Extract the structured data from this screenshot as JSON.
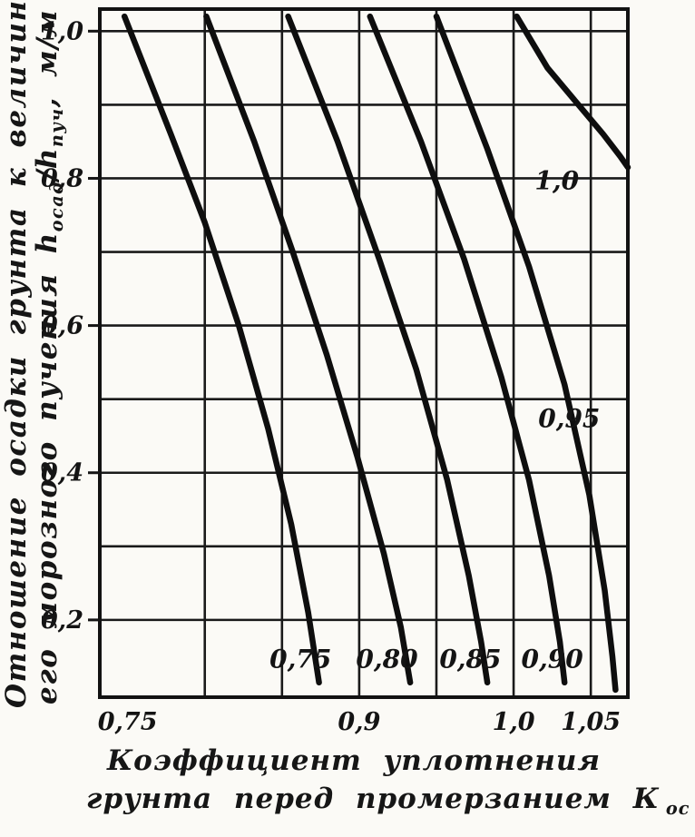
{
  "page": {
    "background": "#fbfaf6",
    "ink": "#161616"
  },
  "ylabel": {
    "line1": "Отношение осадки грунта к величине",
    "line2_pre": "его морозного пучения h",
    "line2_sub1": "осад",
    "line2_mid": "/h",
    "line2_sub2": "пуч",
    "line2_post": ", м/м"
  },
  "xlabel": {
    "line1": "Коэффициент уплотнения",
    "line2_main": "грунта перед промерзанием К",
    "line2_sub": "ос"
  },
  "chart_data": {
    "type": "line",
    "title": "",
    "xlabel": "Коэффициент уплотнения грунта перед промерзанием Кос",
    "ylabel": "Отношение осадки грунта к величине его морозного пучения hосад/hпуч, м/м",
    "x_range": [
      0.732,
      1.074
    ],
    "y_range": [
      0.095,
      1.03
    ],
    "grid": true,
    "x_ticks": [
      {
        "value": 0.75,
        "label": "0,75"
      },
      {
        "value": 0.9,
        "label": "0,9"
      },
      {
        "value": 1.0,
        "label": "1,0"
      },
      {
        "value": 1.05,
        "label": "1,05"
      }
    ],
    "y_ticks": [
      {
        "value": 0.2,
        "label": "0,2"
      },
      {
        "value": 0.4,
        "label": "0,4"
      },
      {
        "value": 0.6,
        "label": "0,6"
      },
      {
        "value": 0.8,
        "label": "0,8"
      },
      {
        "value": 1.0,
        "label": "1,0"
      }
    ],
    "x_gridlines": [
      0.8,
      0.85,
      0.9,
      0.95,
      1.0,
      1.05
    ],
    "y_gridlines": [
      0.2,
      0.3,
      0.4,
      0.5,
      0.6,
      0.7,
      0.8,
      0.9,
      1.0
    ],
    "series": [
      {
        "name": "0,75",
        "points": [
          [
            0.748,
            1.02
          ],
          [
            0.778,
            0.86
          ],
          [
            0.8,
            0.74
          ],
          [
            0.822,
            0.6
          ],
          [
            0.841,
            0.46
          ],
          [
            0.856,
            0.33
          ],
          [
            0.867,
            0.21
          ],
          [
            0.874,
            0.115
          ]
        ]
      },
      {
        "name": "0,80",
        "points": [
          [
            0.801,
            1.02
          ],
          [
            0.832,
            0.85
          ],
          [
            0.857,
            0.7
          ],
          [
            0.879,
            0.56
          ],
          [
            0.899,
            0.42
          ],
          [
            0.916,
            0.29
          ],
          [
            0.927,
            0.19
          ],
          [
            0.933,
            0.115
          ]
        ]
      },
      {
        "name": "0,85",
        "points": [
          [
            0.854,
            1.02
          ],
          [
            0.886,
            0.85
          ],
          [
            0.913,
            0.69
          ],
          [
            0.937,
            0.54
          ],
          [
            0.957,
            0.39
          ],
          [
            0.971,
            0.26
          ],
          [
            0.979,
            0.17
          ],
          [
            0.983,
            0.115
          ]
        ]
      },
      {
        "name": "0,90",
        "points": [
          [
            0.907,
            1.02
          ],
          [
            0.94,
            0.85
          ],
          [
            0.968,
            0.69
          ],
          [
            0.992,
            0.53
          ],
          [
            1.01,
            0.39
          ],
          [
            1.023,
            0.26
          ],
          [
            1.03,
            0.17
          ],
          [
            1.033,
            0.115
          ]
        ]
      },
      {
        "name": "0,95",
        "points": [
          [
            0.95,
            1.02
          ],
          [
            0.983,
            0.84
          ],
          [
            1.01,
            0.68
          ],
          [
            1.033,
            0.52
          ],
          [
            1.049,
            0.37
          ],
          [
            1.059,
            0.24
          ],
          [
            1.064,
            0.15
          ],
          [
            1.066,
            0.105
          ]
        ]
      },
      {
        "name": "1,0",
        "points": [
          [
            1.002,
            1.02
          ],
          [
            1.022,
            0.95
          ],
          [
            1.042,
            0.9
          ],
          [
            1.058,
            0.86
          ],
          [
            1.069,
            0.83
          ],
          [
            1.074,
            0.815
          ]
        ]
      }
    ],
    "curve_labels": [
      {
        "text": "1,0",
        "x": 1.028,
        "y": 0.785
      },
      {
        "text": "0,95",
        "x": 1.036,
        "y": 0.462
      },
      {
        "text": "0,75",
        "x": 0.862,
        "y": 0.135
      },
      {
        "text": "0,80",
        "x": 0.918,
        "y": 0.135
      },
      {
        "text": "0,85",
        "x": 0.972,
        "y": 0.135
      },
      {
        "text": "0,90",
        "x": 1.025,
        "y": 0.135
      }
    ]
  }
}
